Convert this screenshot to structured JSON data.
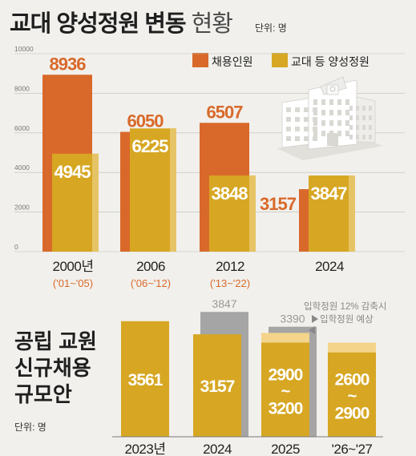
{
  "title": {
    "main": "교대 양성정원 변동",
    "sub": "현황",
    "unit": "단위: 명"
  },
  "colors": {
    "hire": "#d9692a",
    "quota": "#d7a723",
    "quotaLight": "#e6c466",
    "gray": "#a5a5a5",
    "light": "#f3d48a",
    "bg": "#f1f0ec"
  },
  "chart_data": [
    {
      "type": "bar",
      "title": "교대 양성정원 변동 현황",
      "unit": "단위: 명",
      "ylim": [
        0,
        10000
      ],
      "yticks": [
        "0",
        "2000",
        "4000",
        "6000",
        "8000",
        "10000"
      ],
      "legend": [
        "채용인원",
        "교대 등 양성정원"
      ],
      "legend_position": "top-right",
      "categories": [
        "2000년",
        "2006",
        "2012",
        "2024"
      ],
      "category_periods": [
        "('01~'05)",
        "('06~'12)",
        "('13~'22)",
        ""
      ],
      "series": [
        {
          "name": "채용인원",
          "values": [
            8936,
            6050,
            6507,
            3157
          ]
        },
        {
          "name": "교대 등 양성정원",
          "values": [
            4945,
            6225,
            3848,
            3847
          ]
        }
      ]
    },
    {
      "type": "bar",
      "title": "공립 교원 신규채용 규모안",
      "unit": "단위: 명",
      "categories": [
        "2023년",
        "2024",
        "2025",
        "'26~'27"
      ],
      "values": [
        3561,
        3157,
        "2900~3200",
        "2600~2900"
      ],
      "value_labels": [
        "3561",
        "3157",
        "2900\n~\n3200",
        "2600\n~\n2900"
      ],
      "quota_reference": [
        null,
        3847,
        3390,
        null
      ],
      "annotations": [
        "입학정원 12% 감축시",
        "입학정원 예상"
      ]
    }
  ]
}
